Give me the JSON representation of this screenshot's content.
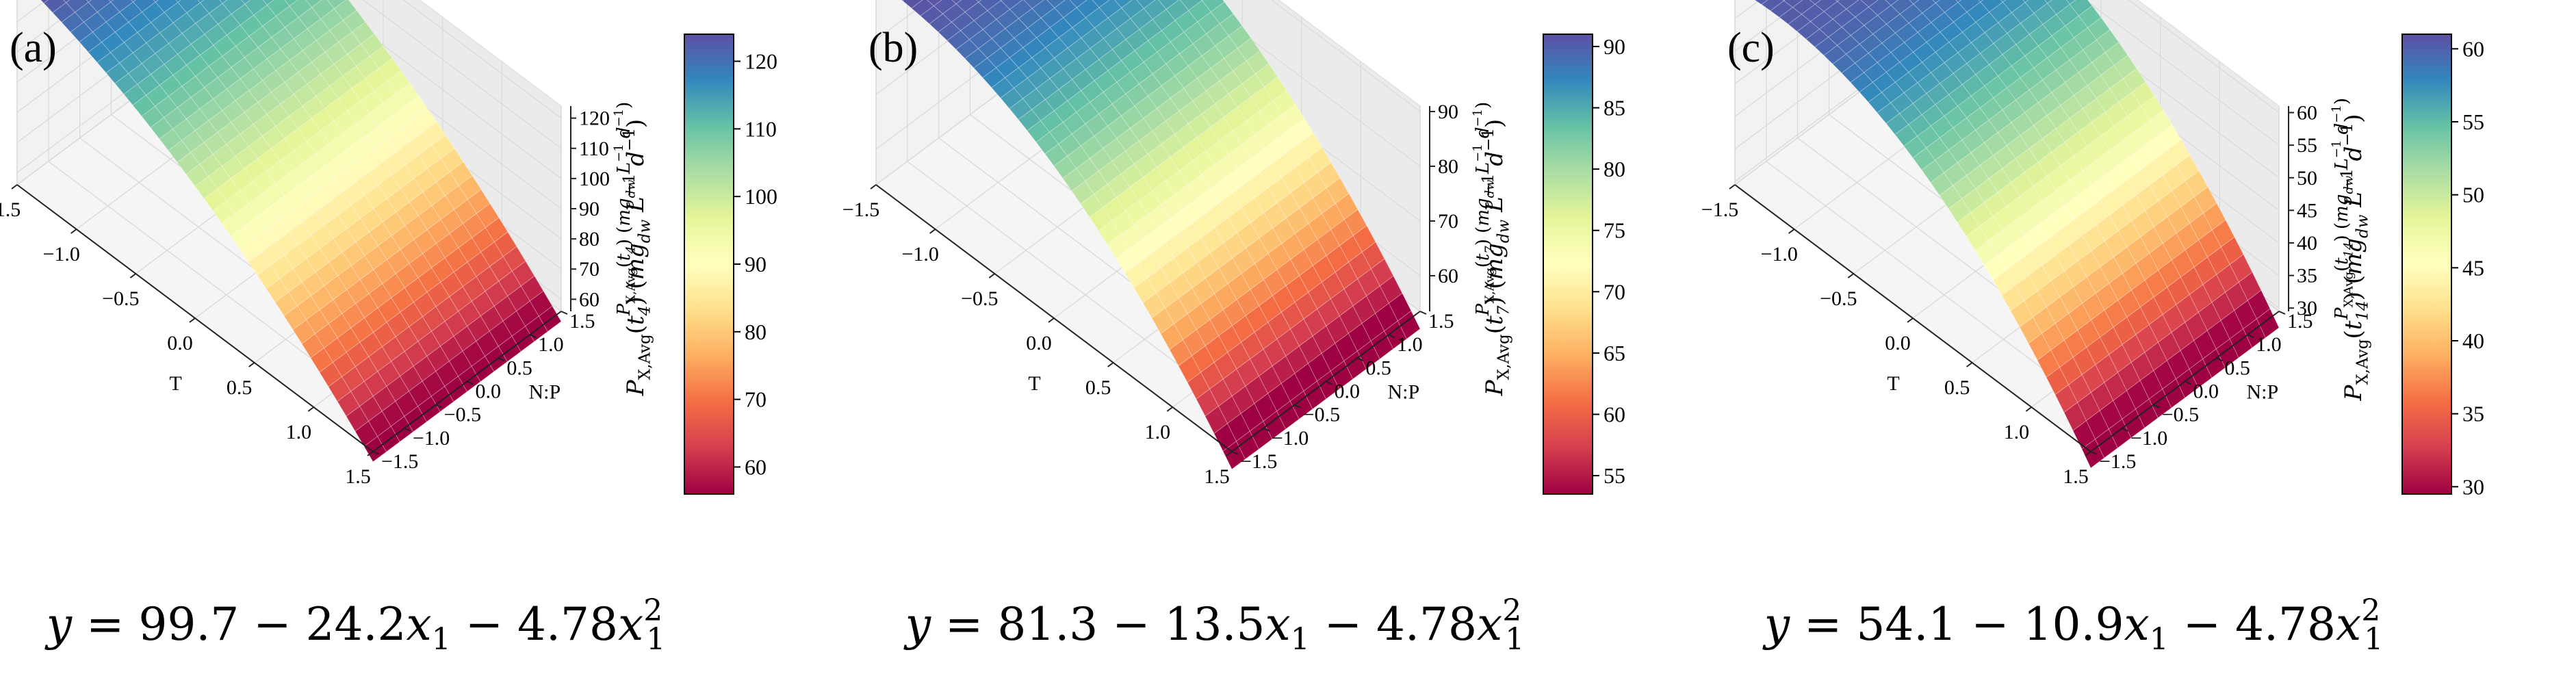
{
  "chart_data": [
    {
      "panel_label": "(a)",
      "type": "surface3d",
      "equation": {
        "lhs": "y",
        "const": "99.7",
        "c1": "24.2",
        "c2": "4.78"
      },
      "xlabel": "T",
      "ylabel": "N:P",
      "x_range": [
        -1.5,
        1.5
      ],
      "y_range": [
        -1.5,
        1.5
      ],
      "x_ticks": [
        "−1.5",
        "−1.0",
        "−0.5",
        "0.0",
        "0.5",
        "1.0",
        "1.5"
      ],
      "y_ticks": [
        "−1.5",
        "−1.0",
        "−0.5",
        "0.0",
        "0.5",
        "1.0",
        "1.5"
      ],
      "z_ticks": [
        "60",
        "70",
        "80",
        "90",
        "100",
        "110",
        "120"
      ],
      "z_range": [
        56,
        124
      ],
      "zlabel": {
        "base": "P",
        "sub": "X,Avg",
        "t": "4",
        "units_sub": "dw"
      },
      "colorbar": {
        "ticks": [
          "60",
          "70",
          "80",
          "90",
          "100",
          "110",
          "120"
        ],
        "range": [
          56,
          124
        ]
      },
      "coef": {
        "c0": 99.7,
        "c1": -24.2,
        "c2": -4.78
      }
    },
    {
      "panel_label": "(b)",
      "type": "surface3d",
      "equation": {
        "lhs": "y",
        "const": "81.3",
        "c1": "13.5",
        "c2": "4.78"
      },
      "xlabel": "T",
      "ylabel": "N:P",
      "x_range": [
        -1.5,
        1.5
      ],
      "y_range": [
        -1.5,
        1.5
      ],
      "x_ticks": [
        "−1.5",
        "−1.0",
        "−0.5",
        "0.0",
        "0.5",
        "1.0",
        "1.5"
      ],
      "y_ticks": [
        "−1.5",
        "−1.0",
        "−0.5",
        "0.0",
        "0.5",
        "1.0",
        "1.5"
      ],
      "z_ticks": [
        "60",
        "70",
        "80",
        "90"
      ],
      "z_range": [
        53.5,
        91
      ],
      "zlabel": {
        "base": "P",
        "sub": "X,Avg",
        "t": "7",
        "units_sub": "dw"
      },
      "colorbar": {
        "ticks": [
          "55",
          "60",
          "65",
          "70",
          "75",
          "80",
          "85",
          "90"
        ],
        "range": [
          53.5,
          91
        ]
      },
      "coef": {
        "c0": 81.3,
        "c1": -13.5,
        "c2": -4.78
      }
    },
    {
      "panel_label": "(c)",
      "type": "surface3d",
      "equation": {
        "lhs": "y",
        "const": "54.1",
        "c1": "10.9",
        "c2": "4.78"
      },
      "xlabel": "T",
      "ylabel": "N:P",
      "x_range": [
        -1.5,
        1.5
      ],
      "y_range": [
        -1.5,
        1.5
      ],
      "x_ticks": [
        "−1.5",
        "−1.0",
        "−0.5",
        "0.0",
        "0.5",
        "1.0",
        "1.5"
      ],
      "y_ticks": [
        "−1.5",
        "−1.0",
        "−0.5",
        "0.0",
        "0.5",
        "1.0",
        "1.5"
      ],
      "z_ticks": [
        "30",
        "35",
        "40",
        "45",
        "50",
        "55",
        "60"
      ],
      "z_range": [
        29.5,
        61
      ],
      "zlabel": {
        "base": "P",
        "sub": "X,Avg",
        "t": "14",
        "units_sub": "dw"
      },
      "colorbar": {
        "ticks": [
          "30",
          "35",
          "40",
          "45",
          "50",
          "55",
          "60"
        ],
        "range": [
          29.5,
          61
        ]
      },
      "coef": {
        "c0": 54.1,
        "c1": -10.9,
        "c2": -4.78
      }
    }
  ],
  "colormap": [
    "#9e0142",
    "#d53e4f",
    "#f46d43",
    "#fdae61",
    "#fee08b",
    "#ffffbf",
    "#e6f598",
    "#abdda4",
    "#66c2a5",
    "#3288bd",
    "#5e4fa2"
  ]
}
